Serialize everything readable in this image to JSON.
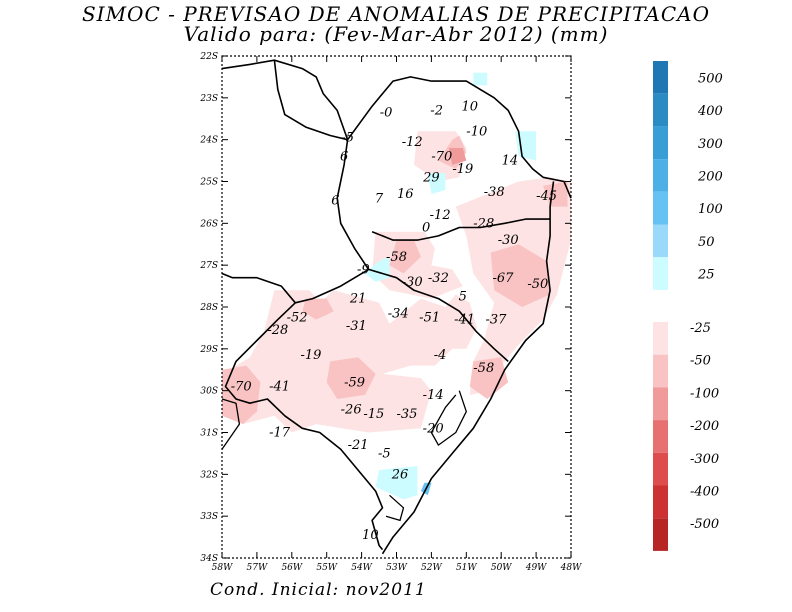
{
  "header": {
    "title": "SIMOC - PREVISAO DE ANOMALIAS DE PRECIPITACAO",
    "subtitle": "Valido para: (Fev-Mar-Abr 2012) (mm)"
  },
  "footer": {
    "text": "Cond. Inicial: nov2011"
  },
  "map": {
    "lat_labels": [
      "22S",
      "23S",
      "24S",
      "25S",
      "26S",
      "27S",
      "28S",
      "29S",
      "30S",
      "31S",
      "32S",
      "33S",
      "34S"
    ],
    "lon_labels": [
      "58W",
      "57W",
      "56W",
      "55W",
      "54W",
      "53W",
      "52W",
      "51W",
      "50W",
      "49W",
      "48W"
    ],
    "anomaly_labels": [
      {
        "text": "-0",
        "lon": -53.3,
        "lat": -23.4
      },
      {
        "text": "-2",
        "lon": -51.85,
        "lat": -23.35
      },
      {
        "text": "10",
        "lon": -50.9,
        "lat": -23.25
      },
      {
        "text": "-10",
        "lon": -50.7,
        "lat": -23.85
      },
      {
        "text": "-5",
        "lon": -54.4,
        "lat": -24.0
      },
      {
        "text": "6",
        "lon": -54.5,
        "lat": -24.45
      },
      {
        "text": "-12",
        "lon": -52.55,
        "lat": -24.1
      },
      {
        "text": "-70",
        "lon": -51.7,
        "lat": -24.45
      },
      {
        "text": "14",
        "lon": -49.75,
        "lat": -24.55
      },
      {
        "text": "-19",
        "lon": -51.1,
        "lat": -24.75
      },
      {
        "text": "29",
        "lon": -52.0,
        "lat": -24.95
      },
      {
        "text": "-38",
        "lon": -50.2,
        "lat": -25.3
      },
      {
        "text": "-45",
        "lon": -48.7,
        "lat": -25.4
      },
      {
        "text": "16",
        "lon": -52.75,
        "lat": -25.35
      },
      {
        "text": "7",
        "lon": -53.5,
        "lat": -25.45
      },
      {
        "text": "6",
        "lon": -54.75,
        "lat": -25.5
      },
      {
        "text": "-12",
        "lon": -51.75,
        "lat": -25.85
      },
      {
        "text": "-28",
        "lon": -50.5,
        "lat": -26.05
      },
      {
        "text": "0",
        "lon": -52.15,
        "lat": -26.15
      },
      {
        "text": "-30",
        "lon": -49.8,
        "lat": -26.45
      },
      {
        "text": "-58",
        "lon": -53.0,
        "lat": -26.85
      },
      {
        "text": "-9",
        "lon": -53.95,
        "lat": -27.15
      },
      {
        "text": "-32",
        "lon": -51.8,
        "lat": -27.35
      },
      {
        "text": "-30",
        "lon": -52.55,
        "lat": -27.45
      },
      {
        "text": "-67",
        "lon": -49.95,
        "lat": -27.35
      },
      {
        "text": "-50",
        "lon": -48.95,
        "lat": -27.5
      },
      {
        "text": "21",
        "lon": -54.1,
        "lat": -27.85
      },
      {
        "text": "5",
        "lon": -51.1,
        "lat": -27.8
      },
      {
        "text": "-52",
        "lon": -55.85,
        "lat": -28.3
      },
      {
        "text": "-34",
        "lon": -52.95,
        "lat": -28.2
      },
      {
        "text": "-51",
        "lon": -52.05,
        "lat": -28.3
      },
      {
        "text": "-41",
        "lon": -51.05,
        "lat": -28.35
      },
      {
        "text": "-37",
        "lon": -50.15,
        "lat": -28.35
      },
      {
        "text": "-31",
        "lon": -54.15,
        "lat": -28.5
      },
      {
        "text": "-28",
        "lon": -56.4,
        "lat": -28.6
      },
      {
        "text": "-19",
        "lon": -55.45,
        "lat": -29.2
      },
      {
        "text": "-4",
        "lon": -51.75,
        "lat": -29.2
      },
      {
        "text": "-58",
        "lon": -50.5,
        "lat": -29.5
      },
      {
        "text": "-59",
        "lon": -54.2,
        "lat": -29.85
      },
      {
        "text": "-70",
        "lon": -57.45,
        "lat": -29.95
      },
      {
        "text": "-41",
        "lon": -56.35,
        "lat": -29.95
      },
      {
        "text": "-14",
        "lon": -51.95,
        "lat": -30.15
      },
      {
        "text": "-26",
        "lon": -54.3,
        "lat": -30.5
      },
      {
        "text": "-15",
        "lon": -53.65,
        "lat": -30.6
      },
      {
        "text": "-35",
        "lon": -52.7,
        "lat": -30.6
      },
      {
        "text": "-20",
        "lon": -51.95,
        "lat": -30.95
      },
      {
        "text": "-17",
        "lon": -56.35,
        "lat": -31.05
      },
      {
        "text": "-21",
        "lon": -54.1,
        "lat": -31.35
      },
      {
        "text": "-5",
        "lon": -53.35,
        "lat": -31.55
      },
      {
        "text": "26",
        "lon": -52.9,
        "lat": -32.05
      },
      {
        "text": "10",
        "lon": -53.75,
        "lat": -33.5
      }
    ]
  },
  "colorbar": {
    "positive": [
      {
        "label": "500",
        "color": "#1f78b4"
      },
      {
        "label": "400",
        "color": "#2b8cc4"
      },
      {
        "label": "300",
        "color": "#3a9ed6"
      },
      {
        "label": "200",
        "color": "#4cb0e6"
      },
      {
        "label": "100",
        "color": "#66c2f2"
      },
      {
        "label": "50",
        "color": "#9ad9fa"
      },
      {
        "label": "25",
        "color": "#ccfcff"
      }
    ],
    "negative": [
      {
        "label": "-25",
        "color": "#fde3e3"
      },
      {
        "label": "-50",
        "color": "#f9c3c3"
      },
      {
        "label": "-100",
        "color": "#f19a9a"
      },
      {
        "label": "-200",
        "color": "#e77070"
      },
      {
        "label": "-300",
        "color": "#dd4d4d"
      },
      {
        "label": "-400",
        "color": "#cc3232"
      },
      {
        "label": "-500",
        "color": "#b72525"
      }
    ]
  },
  "colors": {
    "neg_light": "#fde3e3",
    "neg_mid": "#f9c3c3",
    "neg_strong": "#f19a9a",
    "pos_light": "#ccfcff",
    "pos_mid": "#9ad9fa",
    "pos_strong": "#66c2f2"
  }
}
